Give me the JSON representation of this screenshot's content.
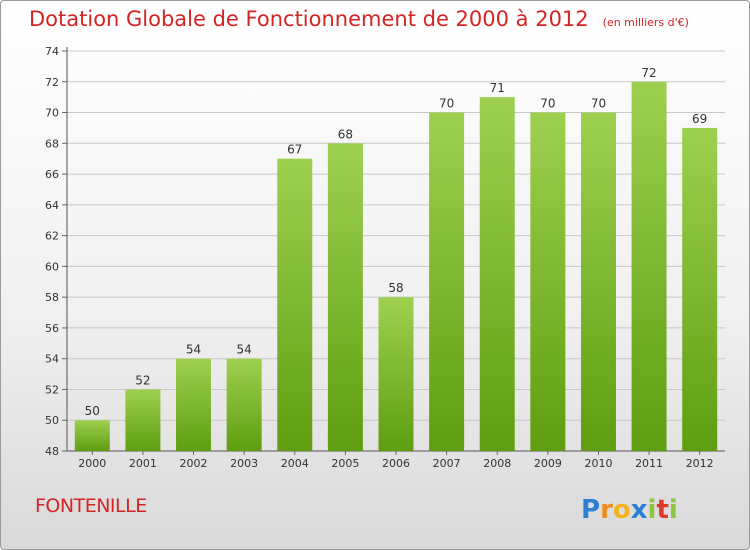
{
  "header": {
    "title": "Dotation Globale de Fonctionnement de 2000 à 2012",
    "unit": "(en milliers d'€)"
  },
  "footer": {
    "commune": "FONTENILLE",
    "logo_text": "Proxiti"
  },
  "colors": {
    "title": "#d42424",
    "bar_top": "#9ed050",
    "bar_bottom": "#5e9e10",
    "grid": "#c8c8c8"
  },
  "chart_data": {
    "type": "bar",
    "title": "Dotation Globale de Fonctionnement de 2000 à 2012",
    "subtitle": "(en milliers d'€)",
    "xlabel": "",
    "ylabel": "",
    "categories": [
      "2000",
      "2001",
      "2002",
      "2003",
      "2004",
      "2005",
      "2006",
      "2007",
      "2008",
      "2009",
      "2010",
      "2011",
      "2012"
    ],
    "values": [
      50,
      52,
      54,
      54,
      67,
      68,
      58,
      70,
      71,
      70,
      70,
      72,
      69
    ],
    "ylim": [
      48,
      74
    ],
    "yticks": [
      48,
      50,
      52,
      54,
      56,
      58,
      60,
      62,
      64,
      66,
      68,
      70,
      72,
      74
    ],
    "grid": true,
    "legend": "none"
  }
}
